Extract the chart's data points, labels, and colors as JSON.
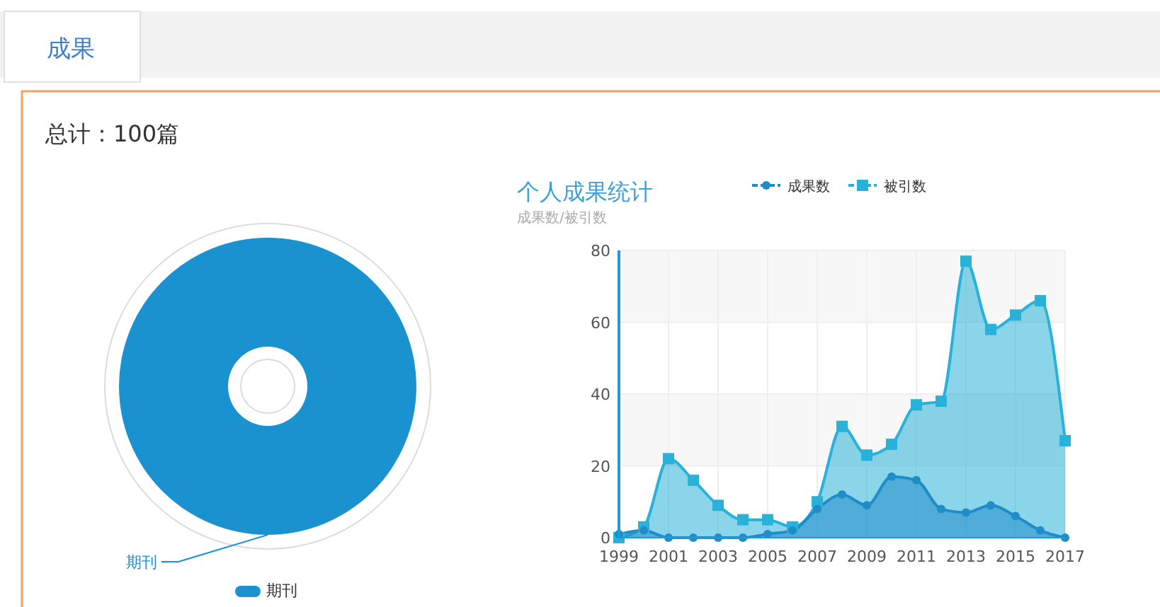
{
  "chart_data": [
    {
      "type": "donut",
      "title": "总计：100篇",
      "annotations": [
        "成果"
      ],
      "categories": [
        "期刊"
      ],
      "values": [
        100
      ],
      "colors": [
        "#1a92d0"
      ],
      "legend": "bottom"
    },
    {
      "type": "area",
      "title": "个人成果统计",
      "subtitle": "成果数/被引数",
      "x": [
        1999,
        2000,
        2001,
        2002,
        2003,
        2004,
        2005,
        2006,
        2007,
        2008,
        2009,
        2010,
        2011,
        2012,
        2013,
        2014,
        2015,
        2016,
        2017
      ],
      "xlim": [
        1999,
        2017
      ],
      "xticks": [
        1999,
        2001,
        2003,
        2005,
        2007,
        2009,
        2011,
        2013,
        2015,
        2017
      ],
      "ylim": [
        0,
        80
      ],
      "yticks": [
        0,
        20,
        40,
        60,
        80
      ],
      "grid": true,
      "legend": "top",
      "series": [
        {
          "name": "成果数",
          "color": "#1f8dc8",
          "marker": "circle",
          "values": [
            1,
            2,
            0,
            0,
            0,
            0,
            1,
            2,
            8,
            12,
            9,
            17,
            16,
            8,
            7,
            9,
            6,
            2,
            0
          ]
        },
        {
          "name": "被引数",
          "color": "#29b2d9",
          "marker": "square",
          "values": [
            0,
            3,
            22,
            16,
            9,
            5,
            5,
            3,
            10,
            31,
            23,
            26,
            37,
            38,
            77,
            58,
            62,
            66,
            27
          ]
        }
      ]
    }
  ]
}
